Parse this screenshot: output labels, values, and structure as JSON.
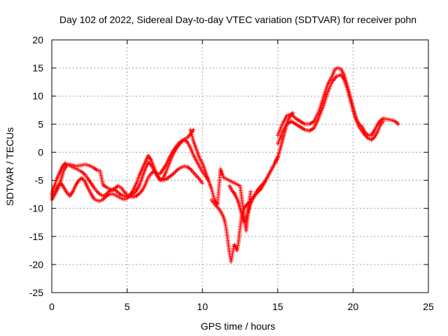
{
  "chart_data": {
    "type": "scatter",
    "title": "Day 102 of 2022, Sidereal Day-to-day VTEC variation (SDTVAR) for receiver pohn",
    "xlabel": "GPS time / hours",
    "ylabel": "SDTVAR / TECUs",
    "xlim": [
      0,
      25
    ],
    "ylim": [
      -25,
      20
    ],
    "xticks": [
      0,
      5,
      10,
      15,
      20,
      25
    ],
    "yticks": [
      -25,
      -20,
      -15,
      -10,
      -5,
      0,
      5,
      10,
      15,
      20
    ],
    "grid": true,
    "marker": "+",
    "color": "#ff0000",
    "series": [
      {
        "name": "SDTVAR",
        "x": [
          0.0,
          0.1,
          0.2,
          0.3,
          0.4,
          0.5,
          0.6,
          0.7,
          0.8,
          0.9,
          1.0,
          1.2,
          1.4,
          1.6,
          1.8,
          2.0,
          2.2,
          2.4,
          2.6,
          2.8,
          3.0,
          3.2,
          3.4,
          3.6,
          3.8,
          4.0,
          4.2,
          4.4,
          4.6,
          4.8,
          5.0,
          5.2,
          5.4,
          5.6,
          5.8,
          6.0,
          6.2,
          6.4,
          6.6,
          6.8,
          7.0,
          7.2,
          7.4,
          7.6,
          7.8,
          8.0,
          8.2,
          8.4,
          8.6,
          8.8,
          9.0,
          9.2,
          9.4,
          9.6,
          9.8,
          10.0,
          10.2,
          10.4
        ],
        "y": [
          -7.5,
          -6.5,
          -5.8,
          -5.0,
          -4.3,
          -3.8,
          -3.2,
          -2.6,
          -2.2,
          -2.0,
          -2.1,
          -2.4,
          -2.7,
          -2.9,
          -3.2,
          -3.5,
          -4.0,
          -4.7,
          -5.5,
          -6.3,
          -7.0,
          -7.5,
          -7.8,
          -7.5,
          -7.0,
          -6.6,
          -6.7,
          -7.2,
          -7.6,
          -7.8,
          -8.0,
          -7.8,
          -7.4,
          -6.9,
          -6.0,
          -4.5,
          -3.0,
          -1.8,
          -2.3,
          -3.3,
          -4.0,
          -3.8,
          -3.0,
          -2.2,
          -1.0,
          0.0,
          0.8,
          1.5,
          2.0,
          2.2,
          1.8,
          0.8,
          -0.5,
          -1.5,
          -2.5,
          -3.5,
          -4.2,
          -5.0
        ]
      },
      {
        "name": "SDTVAR",
        "x": [
          0.0,
          0.2,
          0.4,
          0.6,
          0.8,
          1.0,
          1.2,
          1.4,
          1.6,
          1.8,
          2.0,
          2.2,
          2.4,
          2.6,
          2.8,
          3.0,
          3.2,
          3.4,
          3.6,
          3.8,
          4.0,
          4.2,
          4.4,
          4.6,
          4.8,
          5.0,
          5.2,
          5.4,
          5.6,
          5.8,
          6.0,
          6.2,
          6.4,
          6.6,
          6.8,
          7.0,
          7.2,
          7.4,
          7.6,
          7.8,
          8.0,
          8.2,
          8.4,
          8.6,
          8.8,
          9.0,
          9.2,
          9.4,
          9.6,
          9.8,
          10.0
        ],
        "y": [
          -8.5,
          -7.5,
          -6.5,
          -5.0,
          -3.2,
          -2.3,
          -2.2,
          -2.3,
          -2.5,
          -2.4,
          -2.3,
          -2.2,
          -2.3,
          -2.5,
          -2.8,
          -3.2,
          -3.3,
          -5.8,
          -6.2,
          -6.5,
          -6.8,
          -6.4,
          -6.0,
          -6.3,
          -7.0,
          -7.6,
          -7.9,
          -8.0,
          -7.8,
          -7.4,
          -6.8,
          -5.8,
          -4.5,
          -3.8,
          -3.3,
          -4.2,
          -4.8,
          -5.0,
          -4.8,
          -4.4,
          -4.0,
          -3.5,
          -3.0,
          -2.7,
          -2.5,
          -2.6,
          -3.0,
          -3.6,
          -4.2,
          -4.8,
          -5.5
        ]
      },
      {
        "name": "SDTVAR",
        "x": [
          0.0,
          0.2,
          0.4,
          0.6,
          0.8,
          1.0,
          1.2,
          1.4,
          1.6,
          1.8,
          2.0,
          2.2,
          2.4,
          2.6,
          2.8,
          3.0,
          3.2,
          3.4,
          3.6,
          3.8,
          4.0,
          4.2,
          4.4,
          4.6,
          4.8,
          5.0,
          5.2,
          5.4,
          5.6,
          5.8,
          6.0,
          6.2,
          6.4,
          6.6,
          6.8,
          7.0,
          7.2,
          7.4,
          7.6,
          7.8,
          8.0,
          8.2,
          8.4,
          8.6,
          8.8,
          9.0,
          9.2,
          9.4
        ],
        "y": [
          -8.0,
          -7.0,
          -6.0,
          -5.5,
          -6.3,
          -7.2,
          -7.8,
          -7.0,
          -5.8,
          -5.0,
          -4.6,
          -5.2,
          -6.4,
          -7.4,
          -8.3,
          -8.6,
          -8.7,
          -8.4,
          -7.9,
          -7.5,
          -7.4,
          -7.6,
          -7.9,
          -8.2,
          -8.4,
          -8.2,
          -7.6,
          -6.8,
          -5.6,
          -4.2,
          -3.0,
          -1.8,
          -0.6,
          -1.4,
          -2.8,
          -4.2,
          -5.0,
          -4.6,
          -3.4,
          -2.0,
          -0.7,
          0.4,
          1.2,
          1.8,
          2.3,
          2.6,
          3.2,
          4.0
        ]
      },
      {
        "name": "SDTVAR",
        "x": [
          10.6,
          10.8,
          11.0,
          11.2,
          11.4,
          11.5,
          11.6,
          11.7,
          11.8,
          11.9,
          12.0,
          12.1,
          12.2,
          12.3,
          12.4,
          12.5,
          12.6,
          12.7,
          12.8,
          12.9,
          13.0,
          13.1,
          13.2,
          13.3,
          13.4,
          13.5,
          13.6,
          13.7,
          13.8,
          13.9,
          14.0,
          14.1,
          14.2,
          14.3,
          14.4,
          14.5,
          14.6,
          14.7,
          14.8,
          14.9,
          15.0,
          15.1,
          15.2,
          15.3,
          15.4,
          15.5,
          15.6,
          15.7,
          15.8,
          15.9,
          16.0
        ],
        "y": [
          -8.5,
          -9.2,
          -9.8,
          -10.5,
          -11.5,
          -12.5,
          -14.0,
          -16.0,
          -18.0,
          -19.5,
          -18.0,
          -16.5,
          -16.8,
          -17.5,
          -16.0,
          -13.5,
          -11.5,
          -10.5,
          -9.8,
          -9.5,
          -9.2,
          -9.0,
          -8.7,
          -8.3,
          -8.0,
          -7.6,
          -7.3,
          -7.0,
          -6.7,
          -6.5,
          -6.0,
          -5.5,
          -5.0,
          -4.5,
          -4.0,
          -3.5,
          -3.0,
          -2.5,
          -2.0,
          -1.5,
          -1.0,
          0.0,
          1.0,
          2.0,
          3.0,
          4.0,
          5.0,
          5.8,
          6.3,
          6.7,
          7.0
        ]
      },
      {
        "name": "SDTVAR",
        "x": [
          11.8,
          11.9,
          12.0,
          12.1,
          12.2,
          12.3,
          12.4,
          12.5,
          12.6,
          12.7,
          12.8,
          12.9,
          13.0,
          13.1,
          13.2,
          13.3,
          13.4,
          13.5,
          13.6,
          13.7,
          13.8,
          13.9,
          14.0,
          14.1,
          14.2,
          14.3,
          14.4,
          14.5,
          14.6,
          14.7,
          14.8,
          14.9,
          15.0
        ],
        "y": [
          -6.0,
          -6.5,
          -7.0,
          -7.2,
          -7.8,
          -8.3,
          -9.0,
          -10.0,
          -11.0,
          -12.0,
          -12.5,
          -12.0,
          -11.0,
          -10.0,
          -9.2,
          -8.5,
          -8.0,
          -7.5,
          -7.0,
          -6.6,
          -6.3,
          -6.0,
          -5.7,
          -5.4,
          -5.0,
          -4.5,
          -4.0,
          -3.5,
          -3.0,
          -2.5,
          -2.0,
          -1.4,
          -0.8
        ]
      },
      {
        "name": "SDTVAR",
        "x": [
          15.0,
          15.3,
          15.6,
          15.9,
          16.2,
          16.5,
          16.8,
          17.1,
          17.4,
          17.7,
          18.0,
          18.3,
          18.6,
          18.8,
          19.0,
          19.2,
          19.4,
          19.6,
          19.8,
          20.0,
          20.2,
          20.4,
          20.6,
          20.8,
          21.0,
          21.2,
          21.4,
          21.6,
          21.8,
          22.0,
          22.2,
          22.4,
          22.6,
          22.8,
          23.0
        ],
        "y": [
          3.0,
          5.0,
          6.5,
          6.8,
          6.0,
          5.5,
          5.0,
          5.0,
          5.5,
          7.0,
          9.5,
          12.0,
          13.5,
          14.8,
          15.0,
          14.8,
          13.8,
          12.0,
          10.0,
          8.0,
          6.0,
          5.0,
          4.5,
          3.5,
          3.0,
          3.0,
          3.8,
          4.8,
          5.6,
          6.0,
          5.9,
          5.8,
          5.7,
          5.5,
          5.0
        ]
      },
      {
        "name": "SDTVAR",
        "x": [
          15.0,
          15.3,
          15.6,
          15.9,
          16.2,
          16.5,
          16.8,
          17.1,
          17.4,
          17.7,
          18.0,
          18.3,
          18.6,
          18.9,
          19.2,
          19.4,
          19.6,
          19.8,
          20.0,
          20.2,
          20.4,
          20.6,
          20.8,
          21.0,
          21.2,
          21.4,
          21.6,
          21.8,
          22.0
        ],
        "y": [
          1.5,
          3.5,
          5.0,
          5.5,
          5.0,
          4.5,
          4.0,
          3.8,
          4.3,
          6.0,
          8.0,
          10.5,
          12.5,
          13.5,
          13.8,
          13.0,
          11.5,
          9.5,
          7.5,
          5.8,
          4.5,
          3.8,
          3.0,
          2.5,
          2.2,
          2.6,
          3.5,
          4.8,
          5.5
        ]
      },
      {
        "name": "SDTVAR",
        "x": [
          9.2,
          9.4,
          9.6,
          9.8,
          10.0,
          10.2,
          10.4,
          10.6,
          10.8,
          11.0,
          11.2,
          11.4,
          12.5,
          12.6,
          12.7,
          12.8,
          12.9,
          13.0,
          13.1,
          13.2
        ],
        "y": [
          4.0,
          2.0,
          0.5,
          -1.0,
          -2.0,
          -3.5,
          -5.0,
          -6.5,
          -8.5,
          -9.3,
          -3.0,
          -4.5,
          -6.0,
          -8.0,
          -10.0,
          -12.5,
          -14.0,
          -11.5,
          -9.0,
          -7.0
        ]
      }
    ]
  }
}
